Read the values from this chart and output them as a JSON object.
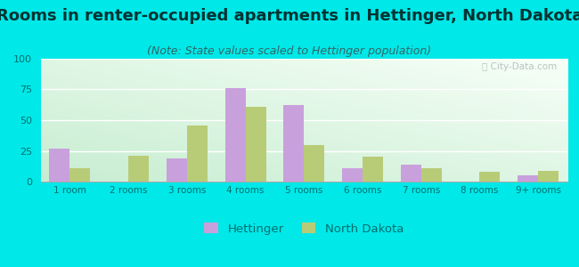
{
  "title": "Rooms in renter-occupied apartments in Hettinger, North Dakota",
  "subtitle": "(Note: State values scaled to Hettinger population)",
  "categories": [
    "1 room",
    "2 rooms",
    "3 rooms",
    "4 rooms",
    "5 rooms",
    "6 rooms",
    "7 rooms",
    "8 rooms",
    "9+ rooms"
  ],
  "hettinger": [
    27,
    0,
    19,
    76,
    62,
    11,
    14,
    0,
    5
  ],
  "north_dakota": [
    11,
    21,
    46,
    61,
    30,
    20,
    11,
    8,
    9
  ],
  "hettinger_color": "#c8a0dc",
  "nd_color": "#b8cc78",
  "bg_outer": "#00e8e8",
  "ylim": [
    0,
    100
  ],
  "yticks": [
    0,
    25,
    50,
    75,
    100
  ],
  "bar_width": 0.35,
  "title_fontsize": 13,
  "subtitle_fontsize": 9,
  "legend_label_hettinger": "Hettinger",
  "legend_label_nd": "North Dakota",
  "tick_color": "#007070",
  "title_color": "#003333"
}
